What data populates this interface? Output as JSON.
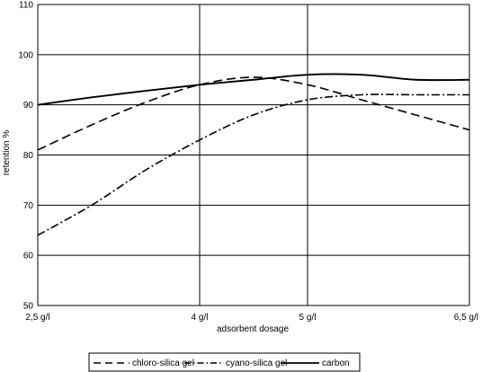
{
  "chart_data": {
    "type": "line",
    "title": "",
    "xlabel": "adsorbent dosage",
    "ylabel": "retention %",
    "x_tick_labels": [
      "2,5 g/l",
      "4 g/l",
      "5 g/l",
      "6,5 g/l"
    ],
    "x_values": [
      2.5,
      4,
      5,
      6.5
    ],
    "ylim": [
      50,
      110
    ],
    "yticks": [
      50,
      60,
      70,
      80,
      90,
      100,
      110
    ],
    "grid": true,
    "legend_position": "bottom",
    "series": [
      {
        "name": "chloro-silica gel",
        "style": "dashed",
        "x": [
          2.5,
          3.0,
          3.5,
          4.0,
          4.5,
          5.0,
          5.5,
          6.0,
          6.5
        ],
        "values": [
          81,
          86,
          90.5,
          94,
          95.5,
          94,
          91,
          88,
          85
        ]
      },
      {
        "name": "cyano-silica gel",
        "style": "dash-dot",
        "x": [
          2.5,
          3.0,
          3.5,
          4.0,
          4.5,
          5.0,
          5.5,
          6.0,
          6.5
        ],
        "values": [
          64,
          70,
          77,
          83,
          88,
          91,
          92,
          92,
          92
        ]
      },
      {
        "name": "carbon",
        "style": "solid",
        "x": [
          2.5,
          3.0,
          3.5,
          4.0,
          4.5,
          5.0,
          5.5,
          6.0,
          6.5
        ],
        "values": [
          90,
          91.5,
          92.8,
          94,
          95,
          96,
          96,
          95,
          95
        ]
      }
    ]
  }
}
